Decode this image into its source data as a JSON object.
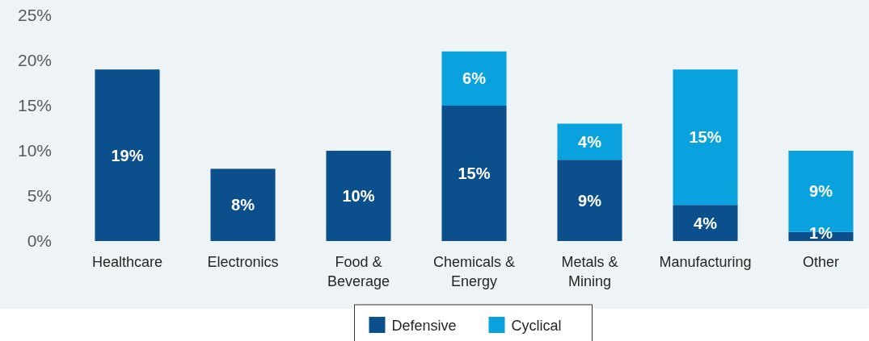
{
  "chart_data": {
    "type": "bar",
    "stacked": true,
    "categories": [
      "Healthcare",
      "Electronics",
      "Food & Beverage",
      "Chemicals & Energy",
      "Metals & Mining",
      "Manufacturing",
      "Other"
    ],
    "series": [
      {
        "name": "Defensive",
        "color": "#0b4f8c",
        "values": [
          19,
          8,
          10,
          15,
          9,
          4,
          1
        ],
        "value_labels": [
          "19%",
          "8%",
          "10%",
          "15%",
          "9%",
          "4%",
          "1%"
        ]
      },
      {
        "name": "Cyclical",
        "color": "#0aa2de",
        "values": [
          null,
          null,
          null,
          6,
          4,
          15,
          9
        ],
        "value_labels": [
          null,
          null,
          null,
          "6%",
          "4%",
          "15%",
          "9%"
        ]
      }
    ],
    "ylim": [
      0,
      25
    ],
    "yticks": [
      {
        "value": 0,
        "label": "0%"
      },
      {
        "value": 5,
        "label": "5%"
      },
      {
        "value": 10,
        "label": "10%"
      },
      {
        "value": 15,
        "label": "15%"
      },
      {
        "value": 20,
        "label": "20%"
      },
      {
        "value": 25,
        "label": "25%"
      }
    ],
    "legend": "bottom"
  }
}
